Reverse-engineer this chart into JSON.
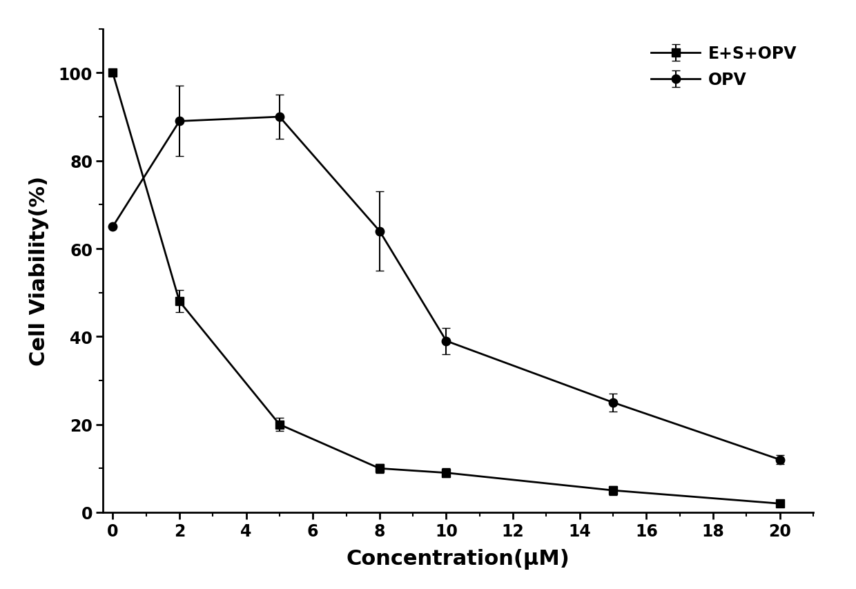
{
  "title": "",
  "xlabel": "Concentration(μM)",
  "ylabel": "Cell Viability(%)",
  "x_values": [
    0,
    2,
    5,
    8,
    10,
    15,
    20
  ],
  "series": [
    {
      "label": "E+S+OPV",
      "marker": "s",
      "y_values": [
        100,
        48,
        20,
        10,
        9,
        5,
        2
      ],
      "y_err": [
        0,
        2.5,
        1.5,
        1.0,
        1.0,
        1.0,
        0.5
      ]
    },
    {
      "label": "OPV",
      "marker": "o",
      "y_values": [
        65,
        89,
        90,
        64,
        39,
        25,
        12
      ],
      "y_err": [
        0,
        8,
        5,
        9,
        3,
        2,
        1
      ]
    }
  ],
  "xlim": [
    -0.3,
    21
  ],
  "ylim": [
    0,
    110
  ],
  "xticks": [
    0,
    2,
    4,
    6,
    8,
    10,
    12,
    14,
    16,
    18,
    20
  ],
  "yticks": [
    0,
    20,
    40,
    60,
    80,
    100
  ],
  "line_color": "#000000",
  "marker_fill": "#000000",
  "marker_size": 9,
  "linewidth": 2.0,
  "legend_fontsize": 17,
  "axis_label_fontsize": 22,
  "tick_fontsize": 17,
  "background_color": "#ffffff",
  "capsize": 4,
  "elinewidth": 1.5,
  "spine_linewidth": 2.0
}
